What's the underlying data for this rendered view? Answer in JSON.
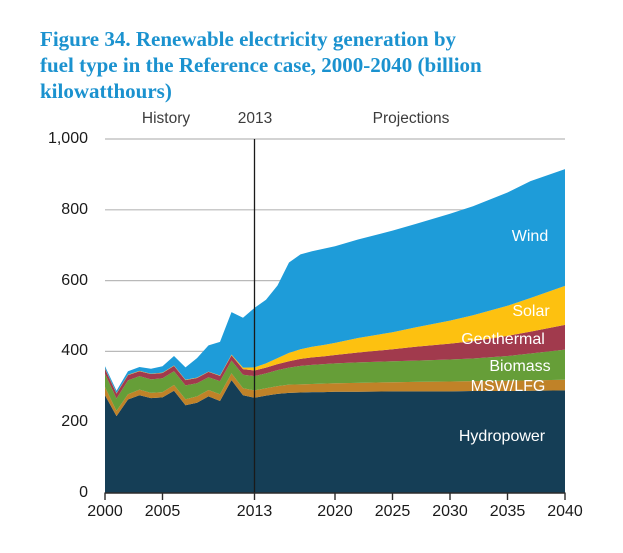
{
  "figure": {
    "title_lines": [
      "Figure 34. Renewable electricity generation by",
      "fuel type in the Reference case, 2000-2040 (billion",
      "kilowatthours)"
    ],
    "title_color": "#1B92CF"
  },
  "header": {
    "history": "History",
    "boundary_year": "2013",
    "projections": "Projections"
  },
  "chart_data": {
    "type": "area",
    "stacked": true,
    "title": "Figure 34. Renewable electricity generation by fuel type in the Reference case, 2000-2040 (billion kilowatthours)",
    "units": "billion kilowatthours",
    "grid": "horizontal",
    "history_boundary": 2013,
    "ylim": [
      0,
      1000
    ],
    "xlim": [
      2000,
      2040
    ],
    "x": [
      2000,
      2001,
      2002,
      2003,
      2004,
      2005,
      2006,
      2007,
      2008,
      2009,
      2010,
      2011,
      2012,
      2013,
      2014,
      2015,
      2016,
      2017,
      2018,
      2019,
      2020,
      2022,
      2025,
      2027,
      2030,
      2032,
      2035,
      2037,
      2040
    ],
    "series": [
      {
        "name": "Hydropower",
        "color": "#153E56",
        "values": [
          276,
          217,
          264,
          276,
          268,
          270,
          289,
          248,
          255,
          273,
          260,
          319,
          276,
          269,
          275,
          280,
          283,
          284,
          285,
          285,
          286,
          286,
          287,
          287,
          287,
          288,
          288,
          289,
          290
        ]
      },
      {
        "name": "MSW/LFG",
        "color": "#C08228",
        "values": [
          23,
          15,
          15,
          16,
          15,
          15,
          16,
          17,
          18,
          18,
          19,
          19,
          20,
          21,
          21,
          22,
          23,
          23,
          23,
          24,
          24,
          25,
          26,
          27,
          28,
          28,
          29,
          29,
          30
        ]
      },
      {
        "name": "Biomass",
        "color": "#669E38",
        "values": [
          38,
          35,
          39,
          38,
          38,
          39,
          39,
          39,
          37,
          36,
          37,
          36,
          38,
          40,
          42,
          45,
          48,
          52,
          54,
          55,
          56,
          58,
          59,
          60,
          62,
          64,
          70,
          76,
          85
        ]
      },
      {
        "name": "Geothermal",
        "color": "#A13A4D",
        "values": [
          14,
          14,
          15,
          14,
          15,
          15,
          15,
          15,
          15,
          15,
          15,
          15,
          16,
          16,
          16,
          17,
          18,
          20,
          21,
          22,
          24,
          28,
          34,
          39,
          45,
          49,
          57,
          62,
          70
        ]
      },
      {
        "name": "Solar",
        "color": "#FDC110",
        "values": [
          1,
          1,
          1,
          1,
          1,
          1,
          1,
          1,
          1,
          1,
          1,
          2,
          4,
          9,
          12,
          17,
          24,
          27,
          30,
          32,
          34,
          41,
          48,
          55,
          65,
          73,
          85,
          95,
          110
        ]
      },
      {
        "name": "Wind",
        "color": "#1E9CD9",
        "values": [
          6,
          7,
          10,
          11,
          14,
          18,
          27,
          35,
          55,
          74,
          95,
          120,
          141,
          168,
          180,
          205,
          255,
          268,
          270,
          272,
          273,
          278,
          287,
          292,
          302,
          308,
          320,
          330,
          330
        ]
      }
    ],
    "y_ticks": [
      {
        "value": 0,
        "label": "0"
      },
      {
        "value": 200,
        "label": "200"
      },
      {
        "value": 400,
        "label": "400"
      },
      {
        "value": 600,
        "label": "600"
      },
      {
        "value": 800,
        "label": "800"
      },
      {
        "value": 1000,
        "label": "1,000"
      }
    ],
    "x_ticks": [
      {
        "value": 2000,
        "label": "2000"
      },
      {
        "value": 2005,
        "label": "2005"
      },
      {
        "value": 2013,
        "label": "2013"
      },
      {
        "value": 2020,
        "label": "2020"
      },
      {
        "value": 2025,
        "label": "2025"
      },
      {
        "value": 2030,
        "label": "2030"
      },
      {
        "value": 2035,
        "label": "2035"
      },
      {
        "value": 2040,
        "label": "2040"
      }
    ]
  }
}
